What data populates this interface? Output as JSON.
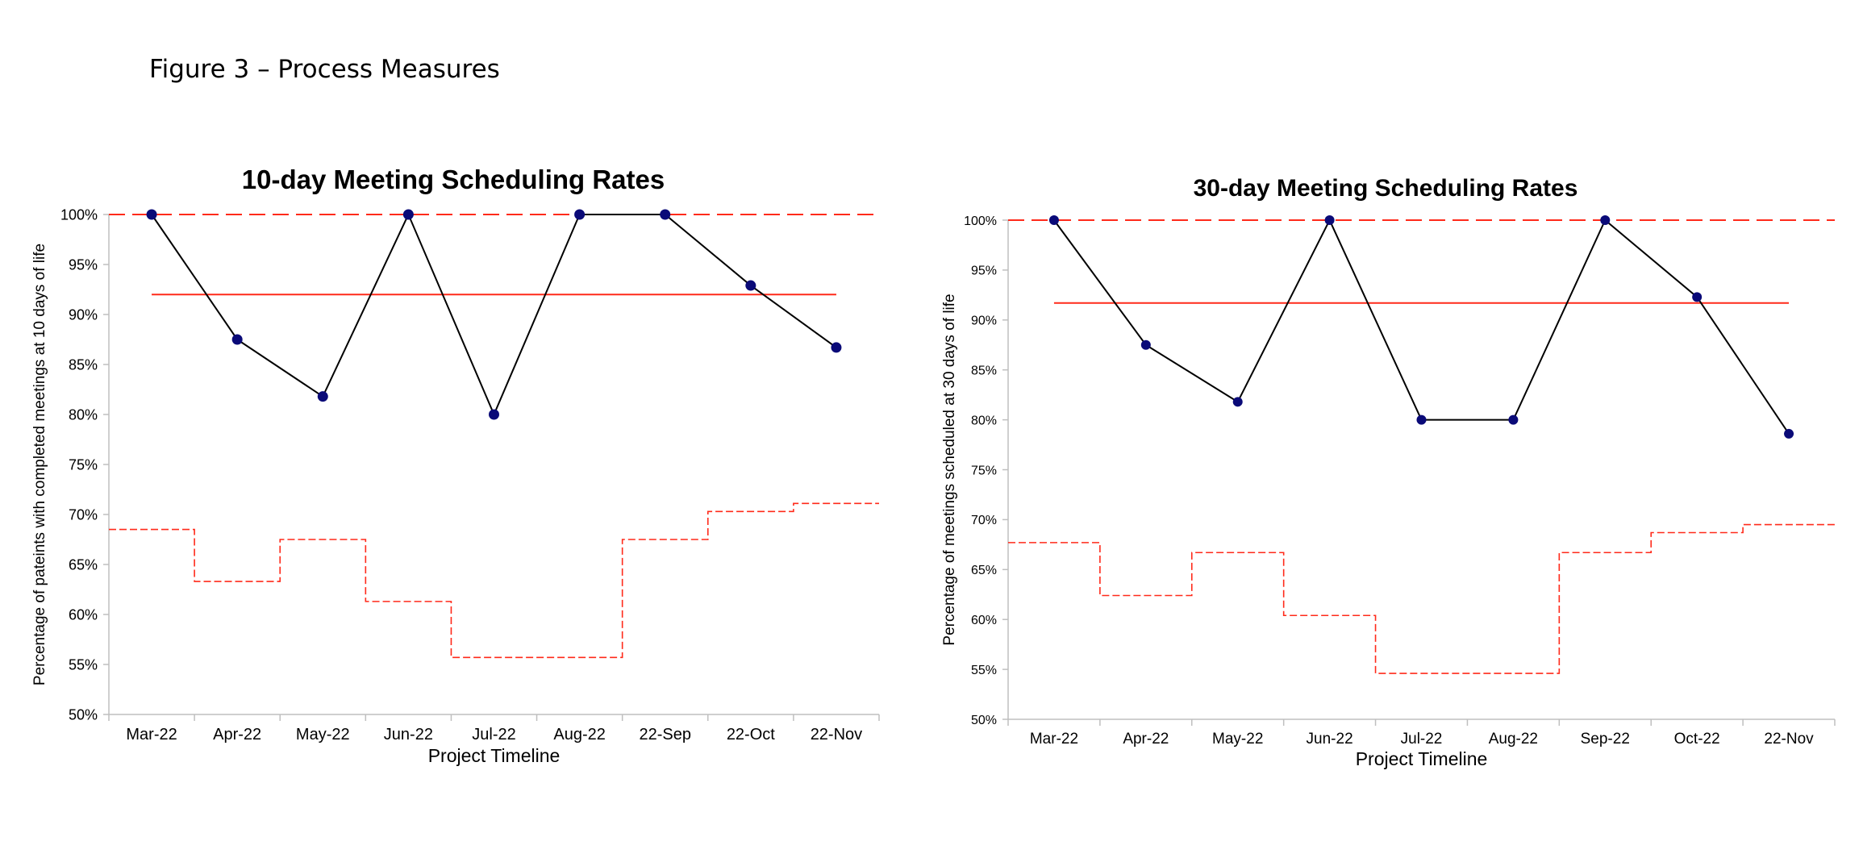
{
  "figure_title": "Figure 3 – Process Measures",
  "colors": {
    "data_line": "#000000",
    "marker": "#0a0a78",
    "control": "#ff2a1a"
  },
  "chart_data": [
    {
      "type": "line",
      "title": "10-day Meeting Scheduling Rates",
      "xlabel": "Project Timeline",
      "ylabel": "Percentage of pateints with completed meetings at 10 days of life",
      "categories": [
        "Mar-22",
        "Apr-22",
        "May-22",
        "Jun-22",
        "Jul-22",
        "Aug-22",
        "22-Sep",
        "22-Oct",
        "22-Nov"
      ],
      "ylim": [
        50,
        100
      ],
      "yticks": [
        "100%",
        "95%",
        "90%",
        "85%",
        "80%",
        "75%",
        "70%",
        "65%",
        "60%",
        "55%",
        "50%"
      ],
      "values": [
        100,
        87.5,
        81.8,
        100,
        80,
        100,
        100,
        92.9,
        86.7
      ],
      "center_line": 92,
      "upper_limit": 100,
      "lower_limit": [
        68.5,
        63.3,
        67.5,
        61.3,
        55.7,
        55.7,
        67.5,
        70.3,
        71.1
      ],
      "grid": false,
      "legend": "none"
    },
    {
      "type": "line",
      "title": "30-day Meeting Scheduling Rates",
      "xlabel": "Project Timeline",
      "ylabel": "Percentage of meetings scheduled at 30 days of life",
      "categories": [
        "Mar-22",
        "Apr-22",
        "May-22",
        "Jun-22",
        "Jul-22",
        "Aug-22",
        "Sep-22",
        "Oct-22",
        "22-Nov"
      ],
      "ylim": [
        50,
        100
      ],
      "yticks": [
        "100%",
        "95%",
        "90%",
        "85%",
        "80%",
        "75%",
        "70%",
        "65%",
        "60%",
        "55%",
        "50%"
      ],
      "values": [
        100,
        87.5,
        81.8,
        100,
        80,
        80,
        100,
        92.3,
        78.6
      ],
      "center_line": 91.7,
      "upper_limit": 100,
      "lower_limit": [
        67.7,
        62.4,
        66.7,
        60.4,
        54.6,
        54.6,
        66.7,
        68.7,
        69.5
      ],
      "grid": false,
      "legend": "none"
    }
  ]
}
